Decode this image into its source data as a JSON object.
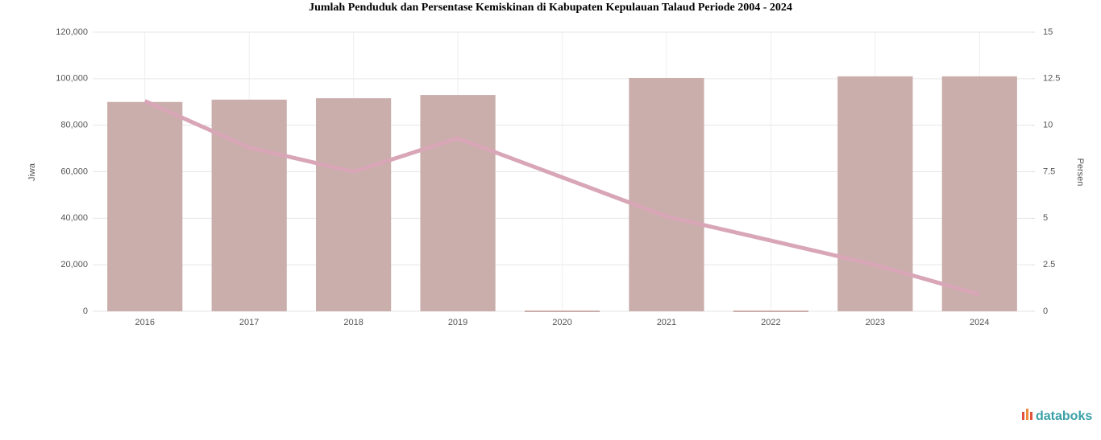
{
  "chart_data": {
    "type": "bar-line",
    "title": "Jumlah Penduduk dan Persentase Kemiskinan di Kabupaten Kepulauan Talaud Periode 2004 - 2024",
    "categories": [
      "2016",
      "2017",
      "2018",
      "2019",
      "2020",
      "2021",
      "2022",
      "2023",
      "2024"
    ],
    "y_label": "Jiwa",
    "y2_label": "Persen",
    "series": [
      {
        "name": "Jumlah Penduduk",
        "type": "bar",
        "color": "#c9aeab",
        "values": [
          90000,
          91000,
          91600,
          93000,
          0,
          100300,
          0,
          101000,
          101000
        ]
      },
      {
        "name": "Persentase Kemiskinan",
        "type": "line",
        "axis": "y2",
        "color": "#d8a6b6",
        "values": [
          11.3,
          8.8,
          7.5,
          9.3,
          7.2,
          5.1,
          3.8,
          2.5,
          0.9
        ]
      }
    ],
    "ylim": [
      0,
      120000
    ],
    "yticks": [
      0,
      {
        "value": 20000,
        "label": "20,000"
      },
      {
        "value": 40000,
        "label": "40,000"
      },
      {
        "value": 60000,
        "label": "60,000"
      },
      {
        "value": 80000,
        "label": "80,000"
      },
      {
        "value": 100000,
        "label": "100,000"
      },
      {
        "value": 120000,
        "label": "120,000"
      }
    ],
    "y2lim": [
      0,
      15
    ],
    "y2ticks": [
      0,
      2.5,
      5,
      7.5,
      10,
      12.5,
      15
    ],
    "grid": true,
    "brand": "databoks"
  }
}
